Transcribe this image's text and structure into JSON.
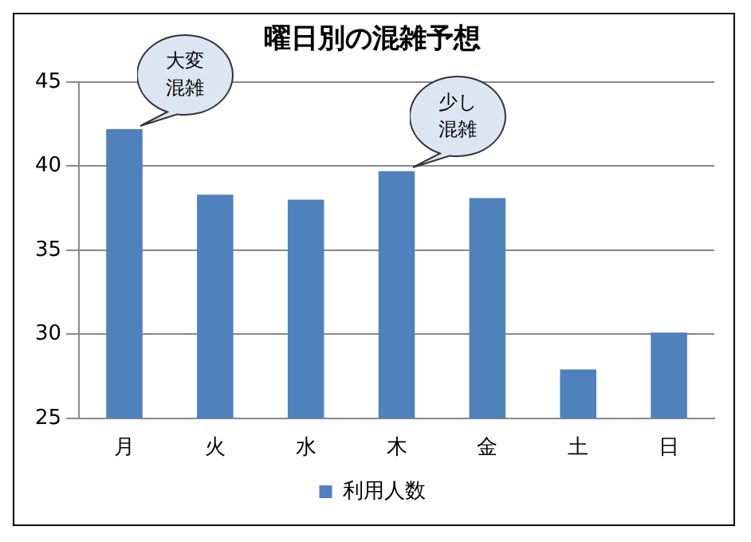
{
  "chart_data": {
    "type": "bar",
    "title": "曜日別の混雑予想",
    "categories": [
      "月",
      "火",
      "水",
      "木",
      "金",
      "土",
      "日"
    ],
    "series": [
      {
        "name": "利用人数",
        "color": "#4f81bd",
        "values": [
          42.2,
          38.3,
          38.0,
          39.7,
          38.1,
          27.9,
          30.1
        ]
      }
    ],
    "ylim": [
      25,
      45
    ],
    "yticks": [
      25,
      30,
      35,
      40,
      45
    ],
    "grid": "y",
    "legend": "bottom",
    "annotations": [
      {
        "text": "大変混雑",
        "x": "月",
        "y": 42.2
      },
      {
        "text": "少し混雑",
        "x": "木",
        "y": 39.7
      }
    ]
  }
}
